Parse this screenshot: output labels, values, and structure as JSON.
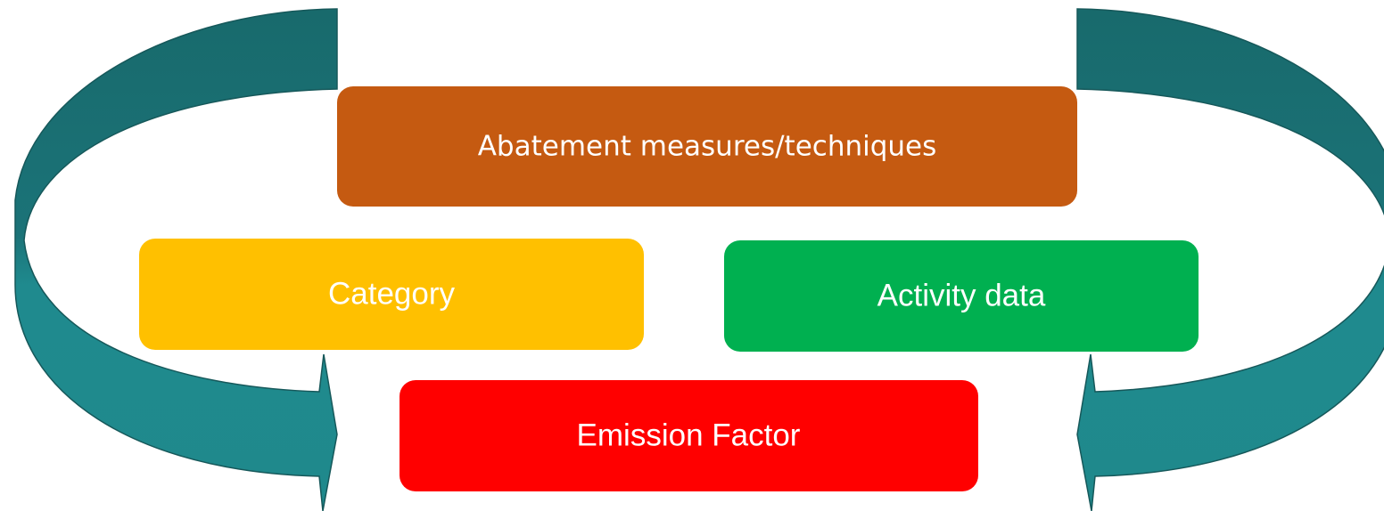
{
  "nodes": [
    {
      "label": "Abatement measures/techniques"
    },
    {
      "label": "Category"
    },
    {
      "label": "Activity data"
    },
    {
      "label": "Emission Factor"
    }
  ]
}
